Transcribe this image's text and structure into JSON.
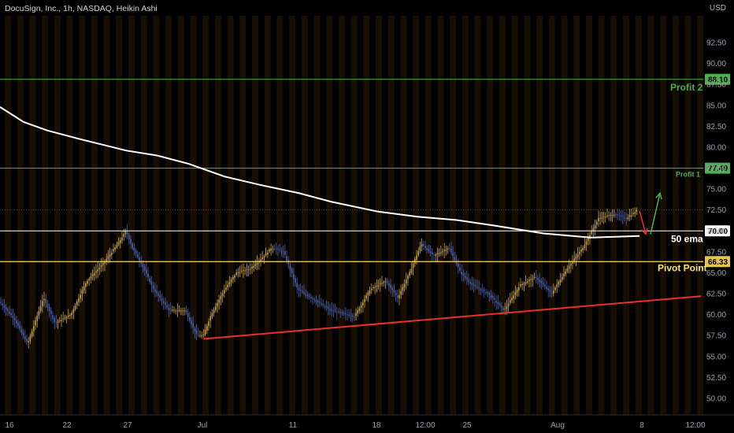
{
  "header": {
    "title": "DocuSign, Inc., 1h, NASDAQ, Heikin Ashi",
    "currency": "USD"
  },
  "colors": {
    "background": "#000000",
    "stripe": "#2a1a08",
    "candle_up": "#c9a542",
    "candle_down": "#4b64b5",
    "ema": "#ffffff",
    "trendline": "#e8302c",
    "profit2": "#4caf50",
    "profit1": "#4caf50",
    "pivot": "#e5c648",
    "level70": "#ffffff",
    "arrow_up": "#4caf50",
    "arrow_down": "#e8302c"
  },
  "chart_data": {
    "type": "candlestick",
    "ylim": [
      47.5,
      95
    ],
    "y_ticks": [
      "50.00",
      "52.50",
      "55.00",
      "57.50",
      "60.00",
      "62.50",
      "65.00",
      "67.50",
      "70.00",
      "72.50",
      "75.00",
      "77.50",
      "80.00",
      "82.50",
      "85.00",
      "87.50",
      "90.00",
      "92.50"
    ],
    "x_ticks": [
      "16",
      "22",
      "27",
      "Jul",
      "11",
      "18",
      "12:00",
      "25",
      "Aug",
      "8",
      "12:00"
    ],
    "price_path": [
      [
        0,
        61.5
      ],
      [
        18,
        59.5
      ],
      [
        35,
        56.5
      ],
      [
        55,
        62
      ],
      [
        70,
        59
      ],
      [
        90,
        60
      ],
      [
        110,
        64
      ],
      [
        130,
        66
      ],
      [
        150,
        68.5
      ],
      [
        160,
        70
      ],
      [
        168,
        68
      ],
      [
        180,
        66
      ],
      [
        195,
        63
      ],
      [
        215,
        60.5
      ],
      [
        235,
        60.5
      ],
      [
        250,
        57.5
      ],
      [
        258,
        57.5
      ],
      [
        268,
        60
      ],
      [
        285,
        63
      ],
      [
        300,
        65
      ],
      [
        318,
        65.5
      ],
      [
        335,
        67
      ],
      [
        345,
        68
      ],
      [
        360,
        67.5
      ],
      [
        378,
        63
      ],
      [
        395,
        62
      ],
      [
        420,
        60.5
      ],
      [
        450,
        59.8
      ],
      [
        470,
        63
      ],
      [
        490,
        64
      ],
      [
        505,
        62
      ],
      [
        520,
        65
      ],
      [
        535,
        68.5
      ],
      [
        550,
        67
      ],
      [
        570,
        68
      ],
      [
        585,
        65
      ],
      [
        600,
        63.5
      ],
      [
        620,
        62.5
      ],
      [
        640,
        60.5
      ],
      [
        660,
        63.5
      ],
      [
        680,
        64.5
      ],
      [
        700,
        62.5
      ],
      [
        720,
        65.5
      ],
      [
        740,
        68
      ],
      [
        760,
        71.5
      ],
      [
        780,
        72
      ],
      [
        795,
        71.5
      ],
      [
        810,
        72.5
      ]
    ],
    "ema_path": [
      [
        0,
        84.8
      ],
      [
        30,
        83
      ],
      [
        60,
        82
      ],
      [
        100,
        81
      ],
      [
        160,
        79.6
      ],
      [
        200,
        79
      ],
      [
        240,
        78
      ],
      [
        285,
        76.5
      ],
      [
        330,
        75.5
      ],
      [
        380,
        74.5
      ],
      [
        420,
        73.5
      ],
      [
        480,
        72.3
      ],
      [
        530,
        71.7
      ],
      [
        580,
        71.3
      ],
      [
        630,
        70.6
      ],
      [
        690,
        69.7
      ],
      [
        750,
        69.2
      ],
      [
        812,
        69.4
      ]
    ],
    "trendline": {
      "x1": 258,
      "y1": 57.1,
      "x2": 890,
      "y2": 62.2
    },
    "levels": [
      {
        "name": "profit2",
        "value": 88.1,
        "label": "88.10",
        "annotation": "Profit 2"
      },
      {
        "name": "profit1",
        "value": 77.49,
        "label": "77.49",
        "annotation": "Profit 1"
      },
      {
        "name": "level70",
        "value": 70.0,
        "label": "70.00",
        "annotation": "50 ema"
      },
      {
        "name": "pivot",
        "value": 66.33,
        "label": "66.33",
        "annotation": "Pivot Point"
      }
    ],
    "arrows": [
      {
        "dir": "up",
        "from": [
          826,
          69.6
        ],
        "to": [
          838,
          74.5
        ]
      },
      {
        "dir": "down",
        "from": [
          812,
          72.4
        ],
        "to": [
          820,
          69.6
        ]
      }
    ]
  }
}
